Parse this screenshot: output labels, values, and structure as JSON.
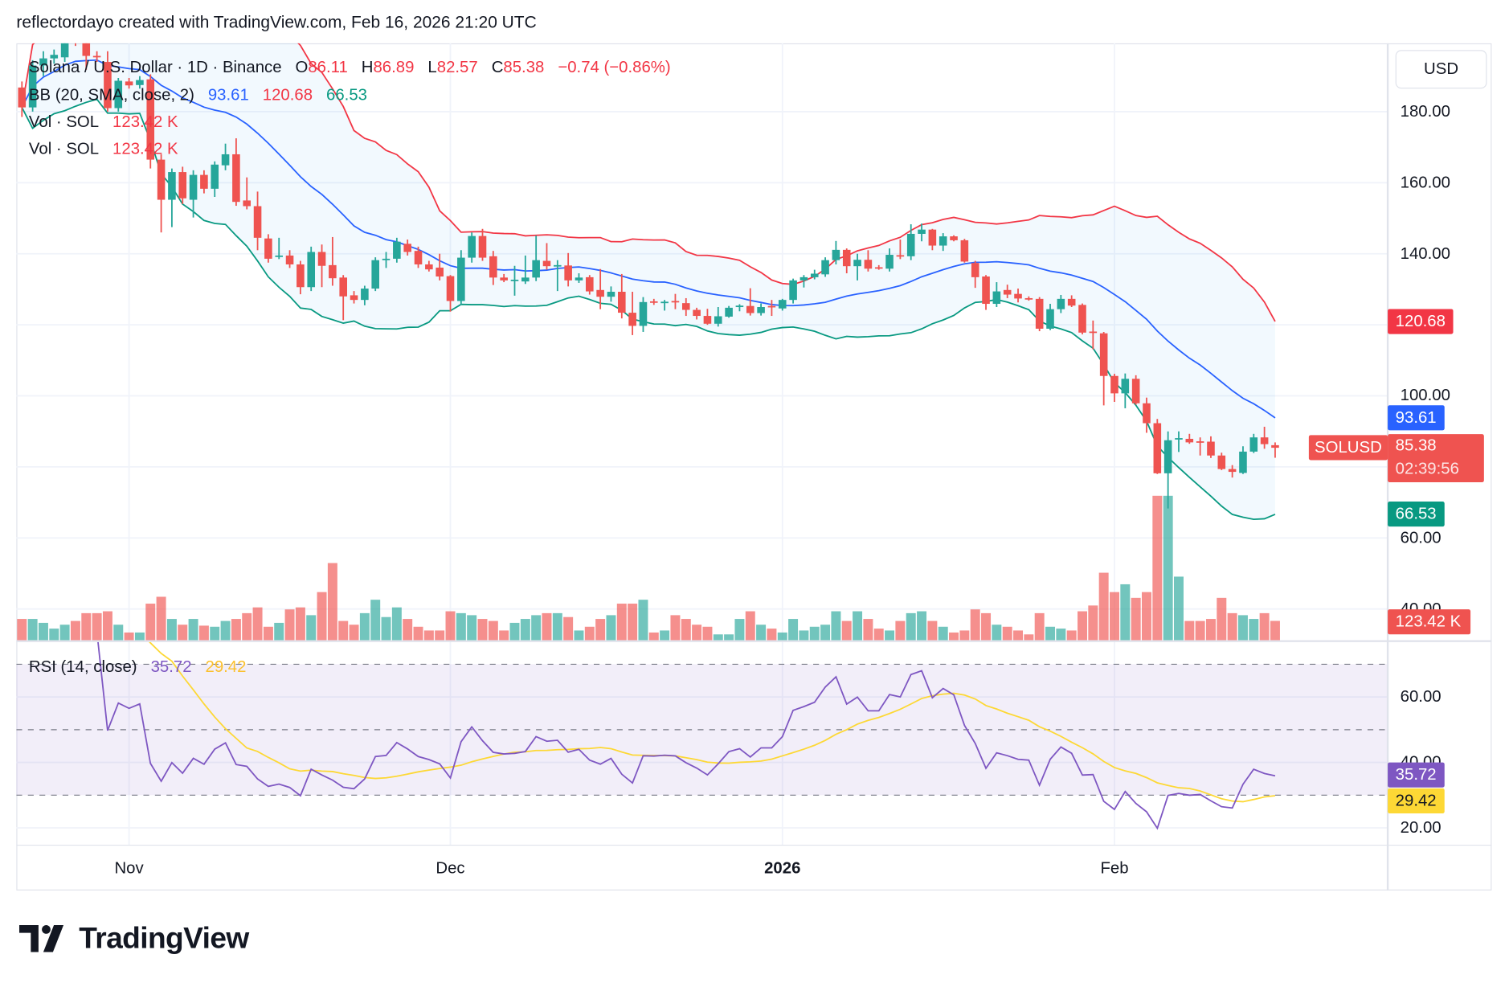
{
  "header": {
    "attribution": "reflectordayo created with TradingView.com, Feb 16, 2026 21:20 UTC"
  },
  "legend": {
    "symbol": "Solana / U.S. Dollar · 1D · Binance",
    "o_label": "O",
    "o": "86.11",
    "h_label": "H",
    "h": "86.89",
    "l_label": "L",
    "l": "82.57",
    "c_label": "C",
    "c": "85.38",
    "change": "−0.74 (−0.86%)",
    "bb_label": "BB (20, SMA, close, 2)",
    "bb_basis": "93.61",
    "bb_upper": "120.68",
    "bb_lower": "66.53",
    "vol": [
      {
        "label": "Vol · SOL",
        "value": "123.42 K"
      },
      {
        "label": "Vol · SOL",
        "value": "123.42 K"
      }
    ],
    "rsi_label": "RSI (14, close)",
    "rsi_value": "35.72",
    "rsi_ma": "29.42"
  },
  "price_axis": {
    "currency": "USD",
    "ticks": [
      "180.00",
      "160.00",
      "140.00",
      "100.00",
      "60.00",
      "40.00"
    ],
    "rsi_ticks": [
      "60.00",
      "40.00",
      "20.00"
    ]
  },
  "markers": {
    "upper": "120.68",
    "basis": "93.61",
    "symbol": "SOLUSD",
    "last": "85.38",
    "countdown": "02:39:56",
    "lower": "66.53",
    "volume": "123.42 K",
    "rsi": "35.72",
    "rsi_ma": "29.42"
  },
  "time_axis": [
    {
      "label": "Nov",
      "date": "2025-11-01",
      "bold": false
    },
    {
      "label": "Dec",
      "date": "2025-12-01",
      "bold": false
    },
    {
      "label": "2026",
      "date": "2026-01-01",
      "bold": true
    },
    {
      "label": "Feb",
      "date": "2026-02-01",
      "bold": false
    }
  ],
  "brand": "TradingView",
  "colors": {
    "up": "#26a69a",
    "down": "#ef5350",
    "bb_basis": "#2962ff",
    "bb_upper": "#f23645",
    "bb_lower": "#089981",
    "rsi": "#7e57c2",
    "rsi_ma": "#fdd835",
    "last_price": "#ef5350"
  },
  "chart_data": {
    "type": "candlestick",
    "symbol": "SOLUSD",
    "interval": "1D",
    "ylim": [
      40,
      200
    ],
    "rsi_ylim": [
      15,
      75
    ],
    "rsi_levels": [
      70,
      50,
      30
    ],
    "indicators": [
      "BB (20, SMA, close, 2)",
      "Vol · SOL",
      "RSI (14, close)"
    ],
    "columns": [
      "date",
      "open",
      "high",
      "low",
      "close",
      "volume_k"
    ],
    "candles": [
      [
        "2025-10-22",
        186.8,
        188.5,
        178.5,
        181.2,
        136
      ],
      [
        "2025-10-23",
        181.2,
        194.5,
        180,
        193,
        136
      ],
      [
        "2025-10-24",
        193,
        197,
        190,
        195,
        111
      ],
      [
        "2025-10-25",
        195,
        197.5,
        193.5,
        196,
        74
      ],
      [
        "2025-10-26",
        195.3,
        202,
        194,
        200.3,
        99
      ],
      [
        "2025-10-27",
        200.3,
        202,
        198.5,
        199.5,
        123
      ],
      [
        "2025-10-28",
        200.3,
        201.5,
        191.8,
        195.7,
        173
      ],
      [
        "2025-10-29",
        195.7,
        197,
        194,
        195.5,
        173
      ],
      [
        "2025-10-30",
        194,
        197,
        180,
        181,
        185
      ],
      [
        "2025-10-31",
        181,
        189.5,
        180,
        188.7,
        99
      ],
      [
        "2025-11-01",
        188.5,
        189.5,
        186.5,
        187.4,
        49
      ],
      [
        "2025-11-02",
        187.5,
        190,
        186.5,
        188.9,
        49
      ],
      [
        "2025-11-03",
        189.1,
        190.5,
        164,
        166.5,
        234
      ],
      [
        "2025-11-04",
        166.5,
        168,
        146,
        155.2,
        278
      ],
      [
        "2025-11-05",
        155.2,
        164,
        147.5,
        163,
        136
      ],
      [
        "2025-11-06",
        163,
        164.5,
        154,
        155.6,
        99
      ],
      [
        "2025-11-07",
        155.2,
        163.5,
        150.2,
        162.2,
        136
      ],
      [
        "2025-11-08",
        162.2,
        163.5,
        157,
        158.3,
        93
      ],
      [
        "2025-11-09",
        158.3,
        166,
        156,
        165.1,
        86
      ],
      [
        "2025-11-10",
        164.9,
        171,
        163.5,
        168,
        123
      ],
      [
        "2025-11-11",
        168,
        172.5,
        153.5,
        154.6,
        136
      ],
      [
        "2025-11-12",
        155,
        161.5,
        152.5,
        153.4,
        173
      ],
      [
        "2025-11-13",
        153.4,
        157.5,
        141,
        144.5,
        210
      ],
      [
        "2025-11-14",
        144.3,
        145.5,
        137.5,
        138.6,
        86
      ],
      [
        "2025-11-15",
        139.3,
        144.5,
        138.5,
        139.5,
        111
      ],
      [
        "2025-11-16",
        139.5,
        141,
        136,
        137,
        197
      ],
      [
        "2025-11-17",
        137,
        138,
        128.6,
        130.6,
        210
      ],
      [
        "2025-11-18",
        130.6,
        142,
        129.5,
        140.5,
        160
      ],
      [
        "2025-11-19",
        140.5,
        142.6,
        130.6,
        136.6,
        308
      ],
      [
        "2025-11-20",
        136.8,
        144.7,
        131,
        133.1,
        494
      ],
      [
        "2025-11-21",
        133.3,
        134,
        121.3,
        128,
        123
      ],
      [
        "2025-11-22",
        128.3,
        129.5,
        126,
        127,
        99
      ],
      [
        "2025-11-23",
        127,
        131,
        125.5,
        130.2,
        173
      ],
      [
        "2025-11-24",
        130.2,
        139,
        129.5,
        138.2,
        259
      ],
      [
        "2025-11-25",
        138.2,
        140.5,
        136,
        138.6,
        148
      ],
      [
        "2025-11-26",
        138.6,
        144.5,
        137.5,
        143.4,
        210
      ],
      [
        "2025-11-27",
        142.8,
        144,
        139.5,
        140.5,
        136
      ],
      [
        "2025-11-28",
        140.8,
        142,
        136,
        137,
        86
      ],
      [
        "2025-11-29",
        137,
        138,
        135,
        135.6,
        62
      ],
      [
        "2025-11-30",
        136.1,
        140,
        132.5,
        133.6,
        62
      ],
      [
        "2025-12-01",
        133.7,
        134,
        123.7,
        126.7,
        185
      ],
      [
        "2025-12-02",
        126.7,
        141,
        125.5,
        138.9,
        173
      ],
      [
        "2025-12-03",
        138.9,
        146,
        137.5,
        145,
        160
      ],
      [
        "2025-12-04",
        145,
        147,
        138,
        138.9,
        136
      ],
      [
        "2025-12-05",
        139.3,
        140.8,
        131.2,
        133.3,
        123
      ],
      [
        "2025-12-06",
        133.3,
        134.3,
        132,
        132.5,
        62
      ],
      [
        "2025-12-07",
        132.6,
        136.6,
        128.2,
        132.7,
        111
      ],
      [
        "2025-12-08",
        132.2,
        139.5,
        131.5,
        133.3,
        136
      ],
      [
        "2025-12-09",
        133.3,
        145.1,
        132.3,
        138.2,
        160
      ],
      [
        "2025-12-10",
        138,
        143,
        135.5,
        136.5,
        173
      ],
      [
        "2025-12-11",
        136.7,
        138.2,
        129.5,
        136.8,
        173
      ],
      [
        "2025-12-12",
        136.7,
        140.2,
        130.8,
        132.5,
        148
      ],
      [
        "2025-12-13",
        132.5,
        134.5,
        131.8,
        133.3,
        62
      ],
      [
        "2025-12-14",
        133.4,
        134,
        128.5,
        129.4,
        86
      ],
      [
        "2025-12-15",
        129.8,
        135.7,
        124.4,
        127.9,
        136
      ],
      [
        "2025-12-16",
        127.9,
        130.8,
        126.5,
        129.3,
        160
      ],
      [
        "2025-12-17",
        129.3,
        134.3,
        121.8,
        123.4,
        234
      ],
      [
        "2025-12-18",
        123.4,
        129.3,
        117.1,
        119.7,
        234
      ],
      [
        "2025-12-19",
        119.7,
        127.8,
        118,
        126.4,
        259
      ],
      [
        "2025-12-20",
        126.6,
        127.3,
        125.6,
        126.3,
        49
      ],
      [
        "2025-12-21",
        126.3,
        127,
        124,
        126.5,
        62
      ],
      [
        "2025-12-22",
        126.7,
        128.7,
        124.4,
        126.3,
        160
      ],
      [
        "2025-12-23",
        126.1,
        127.5,
        122.5,
        124.2,
        136
      ],
      [
        "2025-12-24",
        124.2,
        124.8,
        121.5,
        122.5,
        99
      ],
      [
        "2025-12-25",
        122.5,
        124.5,
        120,
        120.3,
        86
      ],
      [
        "2025-12-26",
        120.3,
        125,
        119.5,
        122.4,
        37
      ],
      [
        "2025-12-27",
        122.3,
        125.3,
        122,
        124.8,
        37
      ],
      [
        "2025-12-28",
        125.2,
        125.8,
        123.8,
        125.4,
        136
      ],
      [
        "2025-12-29",
        125.3,
        130.3,
        122.6,
        123.3,
        185
      ],
      [
        "2025-12-30",
        123.3,
        126,
        122.6,
        125,
        99
      ],
      [
        "2025-12-31",
        125.3,
        127,
        122.5,
        125,
        74
      ],
      [
        "2026-01-01",
        124.6,
        127.3,
        124,
        127,
        49
      ],
      [
        "2026-01-02",
        127,
        133,
        126,
        132.5,
        136
      ],
      [
        "2026-01-03",
        132.5,
        134,
        130.5,
        133.4,
        62
      ],
      [
        "2026-01-04",
        133.4,
        135.5,
        132.8,
        134.4,
        86
      ],
      [
        "2026-01-05",
        134.2,
        139,
        133.5,
        138.2,
        99
      ],
      [
        "2026-01-06",
        138.2,
        143.6,
        137,
        141.1,
        185
      ],
      [
        "2026-01-07",
        141.1,
        141.5,
        134.5,
        136.5,
        123
      ],
      [
        "2026-01-08",
        136.5,
        140,
        132.5,
        138.3,
        185
      ],
      [
        "2026-01-09",
        138.3,
        141,
        135,
        135.8,
        136
      ],
      [
        "2026-01-10",
        136.2,
        136.8,
        135.5,
        135.8,
        74
      ],
      [
        "2026-01-11",
        135.8,
        141.5,
        135,
        139.7,
        62
      ],
      [
        "2026-01-12",
        139.6,
        144,
        138.5,
        139.3,
        123
      ],
      [
        "2026-01-13",
        139.3,
        148.3,
        138.2,
        145.6,
        173
      ],
      [
        "2026-01-14",
        145.6,
        148.5,
        143.5,
        146.8,
        185
      ],
      [
        "2026-01-15",
        146.8,
        147,
        141,
        142.3,
        123
      ],
      [
        "2026-01-16",
        142.3,
        145.8,
        140.8,
        144.9,
        86
      ],
      [
        "2026-01-17",
        144.9,
        145.2,
        143.5,
        143.8,
        49
      ],
      [
        "2026-01-18",
        143.8,
        144.2,
        137.5,
        137.8,
        62
      ],
      [
        "2026-01-19",
        137.4,
        138,
        130.4,
        133.4,
        197
      ],
      [
        "2026-01-20",
        133.6,
        134,
        124.2,
        125.9,
        173
      ],
      [
        "2026-01-21",
        125.9,
        132,
        125,
        129.4,
        99
      ],
      [
        "2026-01-22",
        129.8,
        131.3,
        127.5,
        128.5,
        86
      ],
      [
        "2026-01-23",
        128.7,
        130.2,
        126.3,
        127.4,
        62
      ],
      [
        "2026-01-24",
        127.5,
        128,
        126.8,
        127.2,
        37
      ],
      [
        "2026-01-25",
        127.3,
        127.8,
        118.2,
        118.9,
        173
      ],
      [
        "2026-01-26",
        118.9,
        125.9,
        118.5,
        124.4,
        86
      ],
      [
        "2026-01-27",
        124.4,
        128.4,
        123.3,
        127.3,
        74
      ],
      [
        "2026-01-28",
        127.3,
        128.3,
        125,
        125.4,
        62
      ],
      [
        "2026-01-29",
        125.6,
        126,
        117.3,
        117.8,
        185
      ],
      [
        "2026-01-30",
        118.1,
        121.2,
        113.1,
        117.9,
        222
      ],
      [
        "2026-01-31",
        117.6,
        118,
        97.3,
        105.6,
        432
      ],
      [
        "2026-02-01",
        105.6,
        106.2,
        98.3,
        100.7,
        308
      ],
      [
        "2026-02-02",
        100.7,
        106.3,
        96.5,
        104.8,
        358
      ],
      [
        "2026-02-03",
        104.8,
        105.8,
        97.5,
        97.9,
        271
      ],
      [
        "2026-02-04",
        97.9,
        99.5,
        89.6,
        92.3,
        308
      ],
      [
        "2026-02-05",
        92.3,
        93.5,
        78,
        78.2,
        925
      ],
      [
        "2026-02-06",
        78.2,
        90,
        68.3,
        87.5,
        925
      ],
      [
        "2026-02-07",
        87.9,
        90,
        84.2,
        88.1,
        407
      ],
      [
        "2026-02-08",
        87.9,
        89.3,
        86.5,
        86.9,
        123
      ],
      [
        "2026-02-09",
        87.2,
        88.3,
        83.2,
        87.1,
        123
      ],
      [
        "2026-02-10",
        87.1,
        88.6,
        82.5,
        83.2,
        136
      ],
      [
        "2026-02-11",
        83.2,
        84,
        79.1,
        79.4,
        271
      ],
      [
        "2026-02-12",
        79.4,
        80.5,
        77,
        78.6,
        173
      ],
      [
        "2026-02-13",
        78.3,
        85.8,
        78,
        84.3,
        160
      ],
      [
        "2026-02-14",
        84.3,
        89.3,
        83.9,
        88.3,
        136
      ],
      [
        "2026-02-15",
        88.3,
        91.3,
        85.1,
        86.4,
        173
      ],
      [
        "2026-02-16",
        86.11,
        86.89,
        82.57,
        85.38,
        123.42
      ]
    ]
  }
}
